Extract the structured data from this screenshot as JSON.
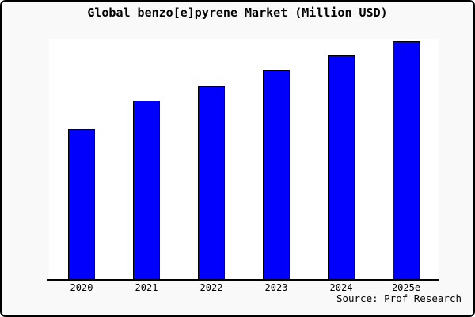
{
  "window": {
    "background_color": "#f9f9f9",
    "frame_border_color": "#000000"
  },
  "header": {
    "title": "Global benzo[e]pyrene Market (Million USD)"
  },
  "footer": {
    "source": "Source: Prof Research"
  },
  "chart_data": {
    "type": "bar",
    "title": "Global benzo[e]pyrene Market (Million USD)",
    "categories": [
      "2020",
      "2021",
      "2022",
      "2023",
      "2024",
      "2025e"
    ],
    "values": [
      63,
      75,
      81,
      88,
      94,
      100
    ],
    "value_scale": "relative; no y-axis ticks or labels shown in chart, values normalized to 2025e = 100",
    "xlabel": "",
    "ylabel": "",
    "ylim": [
      0,
      105
    ],
    "grid": false,
    "legend": false,
    "y_axis_visible": false,
    "bar_color": "#0000fc",
    "bar_border_color": "#000000",
    "plot_background": "#ffffff",
    "axis_line_color": "#000000",
    "source_note": "Source: Prof Research"
  }
}
